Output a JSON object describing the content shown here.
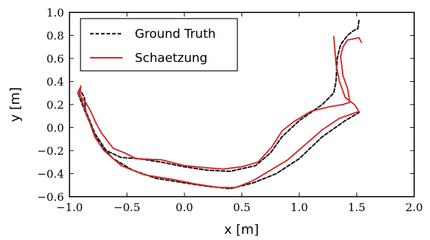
{
  "chart_data": {
    "type": "line",
    "xlabel": "x [m]",
    "ylabel": "y [m]",
    "xlim": [
      -1.0,
      2.0
    ],
    "ylim": [
      -0.6,
      1.0
    ],
    "xticks": [
      "−1.0",
      "−0.5",
      "0.0",
      "0.5",
      "1.0",
      "1.5",
      "2.0"
    ],
    "xtick_values": [
      -1.0,
      -0.5,
      0.0,
      0.5,
      1.0,
      1.5,
      2.0
    ],
    "yticks": [
      "−0.6",
      "−0.4",
      "−0.2",
      "0.0",
      "0.2",
      "0.4",
      "0.6",
      "0.8",
      "1.0"
    ],
    "ytick_values": [
      -0.6,
      -0.4,
      -0.2,
      0.0,
      0.2,
      0.4,
      0.6,
      0.8,
      1.0
    ],
    "grid": false,
    "legend_position": "top-left",
    "series": [
      {
        "name": "Ground Truth",
        "color": "#1a1a1a",
        "style": "dashed",
        "points": [
          [
            1.52,
            0.93
          ],
          [
            1.51,
            0.86
          ],
          [
            1.47,
            0.84
          ],
          [
            1.42,
            0.8
          ],
          [
            1.36,
            0.72
          ],
          [
            1.33,
            0.6
          ],
          [
            1.32,
            0.4
          ],
          [
            1.3,
            0.3
          ],
          [
            1.2,
            0.2
          ],
          [
            1.0,
            0.06
          ],
          [
            0.85,
            -0.08
          ],
          [
            0.75,
            -0.22
          ],
          [
            0.62,
            -0.33
          ],
          [
            0.4,
            -0.38
          ],
          [
            0.2,
            -0.37
          ],
          [
            0.0,
            -0.34
          ],
          [
            -0.2,
            -0.3
          ],
          [
            -0.4,
            -0.27
          ],
          [
            -0.55,
            -0.26
          ],
          [
            -0.68,
            -0.2
          ],
          [
            -0.78,
            -0.05
          ],
          [
            -0.84,
            0.08
          ],
          [
            -0.88,
            0.18
          ],
          [
            -0.92,
            0.28
          ],
          [
            -0.91,
            0.33
          ],
          [
            -0.87,
            0.26
          ],
          [
            -0.86,
            0.15
          ],
          [
            -0.8,
            0.0
          ],
          [
            -0.74,
            -0.14
          ],
          [
            -0.62,
            -0.27
          ],
          [
            -0.45,
            -0.37
          ],
          [
            -0.25,
            -0.44
          ],
          [
            0.0,
            -0.48
          ],
          [
            0.2,
            -0.51
          ],
          [
            0.4,
            -0.53
          ],
          [
            0.6,
            -0.48
          ],
          [
            0.8,
            -0.4
          ],
          [
            1.0,
            -0.27
          ],
          [
            1.2,
            -0.08
          ],
          [
            1.4,
            0.06
          ],
          [
            1.52,
            0.13
          ]
        ]
      },
      {
        "name": "Schaetzung",
        "color": "#d62728",
        "style": "solid",
        "points": [
          [
            1.54,
            0.74
          ],
          [
            1.52,
            0.78
          ],
          [
            1.47,
            0.77
          ],
          [
            1.42,
            0.76
          ],
          [
            1.38,
            0.7
          ],
          [
            1.36,
            0.62
          ],
          [
            1.38,
            0.45
          ],
          [
            1.42,
            0.34
          ],
          [
            1.44,
            0.22
          ],
          [
            1.38,
            0.2
          ],
          [
            1.26,
            0.18
          ],
          [
            1.1,
            0.14
          ],
          [
            0.95,
            0.05
          ],
          [
            0.85,
            -0.03
          ],
          [
            0.76,
            -0.17
          ],
          [
            0.64,
            -0.3
          ],
          [
            0.5,
            -0.34
          ],
          [
            0.34,
            -0.36
          ],
          [
            0.2,
            -0.35
          ],
          [
            0.0,
            -0.33
          ],
          [
            -0.2,
            -0.28
          ],
          [
            -0.42,
            -0.27
          ],
          [
            -0.52,
            -0.22
          ],
          [
            -0.62,
            -0.18
          ],
          [
            -0.72,
            -0.05
          ],
          [
            -0.77,
            0.04
          ],
          [
            -0.82,
            0.15
          ],
          [
            -0.86,
            0.22
          ],
          [
            -0.93,
            0.3
          ],
          [
            -0.9,
            0.36
          ],
          [
            -0.91,
            0.3
          ],
          [
            -0.88,
            0.2
          ],
          [
            -0.83,
            0.06
          ],
          [
            -0.78,
            -0.08
          ],
          [
            -0.7,
            -0.2
          ],
          [
            -0.55,
            -0.33
          ],
          [
            -0.35,
            -0.41
          ],
          [
            -0.1,
            -0.45
          ],
          [
            0.1,
            -0.49
          ],
          [
            0.3,
            -0.52
          ],
          [
            0.45,
            -0.52
          ],
          [
            0.6,
            -0.46
          ],
          [
            0.75,
            -0.37
          ],
          [
            0.9,
            -0.28
          ],
          [
            1.05,
            -0.15
          ],
          [
            1.2,
            -0.02
          ],
          [
            1.35,
            0.08
          ],
          [
            1.52,
            0.14
          ],
          [
            1.48,
            0.2
          ],
          [
            1.4,
            0.26
          ],
          [
            1.35,
            0.4
          ],
          [
            1.32,
            0.55
          ],
          [
            1.3,
            0.79
          ]
        ]
      }
    ]
  }
}
